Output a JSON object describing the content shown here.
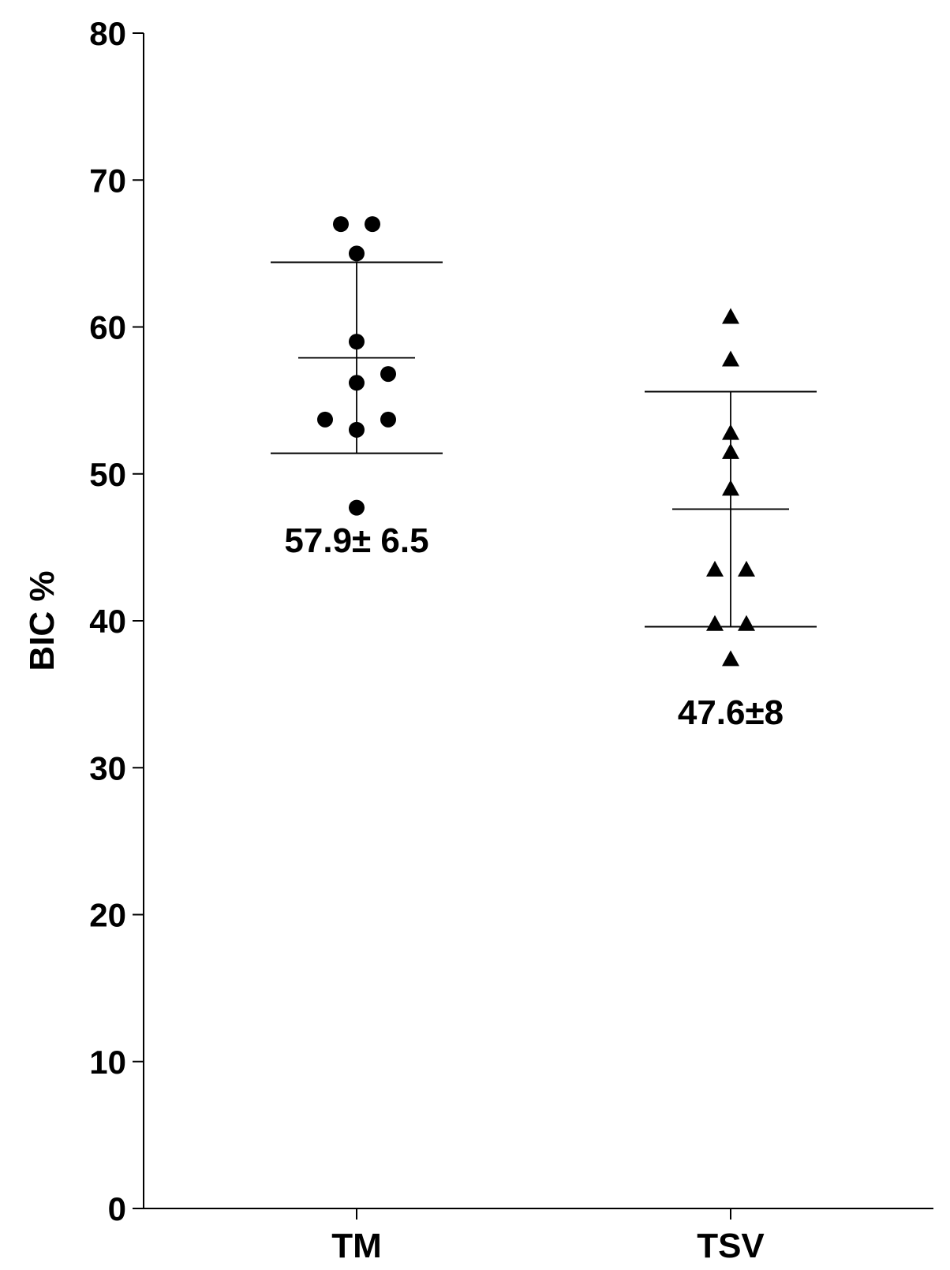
{
  "chart_data": {
    "type": "scatter",
    "ylabel": "BIC %",
    "xlabel": "",
    "ylim": [
      0,
      80
    ],
    "yticks": [
      "0",
      "10",
      "20",
      "30",
      "40",
      "50",
      "60",
      "70",
      "80"
    ],
    "categories": [
      "TM",
      "TSV"
    ],
    "grid": false,
    "series": [
      {
        "category": "TM",
        "marker": "circle",
        "values": [
          67,
          67,
          65,
          59,
          56.8,
          56.2,
          53.7,
          53.7,
          53,
          47.7
        ],
        "mean": 57.9,
        "sd": 6.5,
        "annotation": "57.9± 6.5"
      },
      {
        "category": "TSV",
        "marker": "triangle",
        "values": [
          60.7,
          57.8,
          52.8,
          51.5,
          49,
          43.5,
          43.5,
          39.8,
          39.8,
          37.4
        ],
        "mean": 47.6,
        "sd": 8,
        "annotation": "47.6±8"
      }
    ],
    "colors": {
      "marker": "#000000",
      "axis": "#000000"
    }
  }
}
